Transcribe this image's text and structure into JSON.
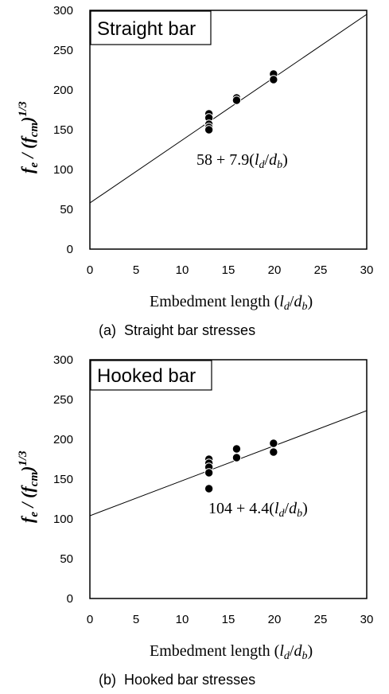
{
  "chart_data": [
    {
      "type": "scatter",
      "panel_caption": "(a)  Straight bar stresses",
      "box_title": "Straight bar",
      "equation": {
        "const": "58",
        "op": " + ",
        "slope": "7.9"
      },
      "xlabel": "Embedment length",
      "ylabel": "f",
      "xlim": [
        0,
        30
      ],
      "ylim": [
        0,
        300
      ],
      "x_ticks": [
        0,
        5,
        10,
        15,
        20,
        25,
        30
      ],
      "y_ticks": [
        0,
        50,
        100,
        150,
        200,
        250,
        300
      ],
      "fit_line": {
        "intercept": 58,
        "slope": 7.9
      },
      "points": [
        {
          "x": 12.9,
          "y": 170
        },
        {
          "x": 12.9,
          "y": 165
        },
        {
          "x": 12.9,
          "y": 157
        },
        {
          "x": 12.9,
          "y": 153
        },
        {
          "x": 12.9,
          "y": 150
        },
        {
          "x": 15.9,
          "y": 190
        },
        {
          "x": 15.9,
          "y": 187
        },
        {
          "x": 19.9,
          "y": 220
        },
        {
          "x": 19.9,
          "y": 213
        }
      ],
      "grid": false
    },
    {
      "type": "scatter",
      "panel_caption": "(b)  Hooked bar stresses",
      "box_title": "Hooked bar",
      "equation": {
        "const": "104",
        "op": " + ",
        "slope": "4.4"
      },
      "xlabel": "Embedment length",
      "ylabel": "f",
      "xlim": [
        0,
        30
      ],
      "ylim": [
        0,
        300
      ],
      "x_ticks": [
        0,
        5,
        10,
        15,
        20,
        25,
        30
      ],
      "y_ticks": [
        0,
        50,
        100,
        150,
        200,
        250,
        300
      ],
      "fit_line": {
        "intercept": 104,
        "slope": 4.4
      },
      "points": [
        {
          "x": 12.9,
          "y": 175
        },
        {
          "x": 12.9,
          "y": 170
        },
        {
          "x": 12.9,
          "y": 165
        },
        {
          "x": 12.9,
          "y": 158
        },
        {
          "x": 12.9,
          "y": 138
        },
        {
          "x": 15.9,
          "y": 188
        },
        {
          "x": 15.9,
          "y": 177
        },
        {
          "x": 19.9,
          "y": 195
        },
        {
          "x": 19.9,
          "y": 184
        }
      ],
      "grid": false
    }
  ]
}
